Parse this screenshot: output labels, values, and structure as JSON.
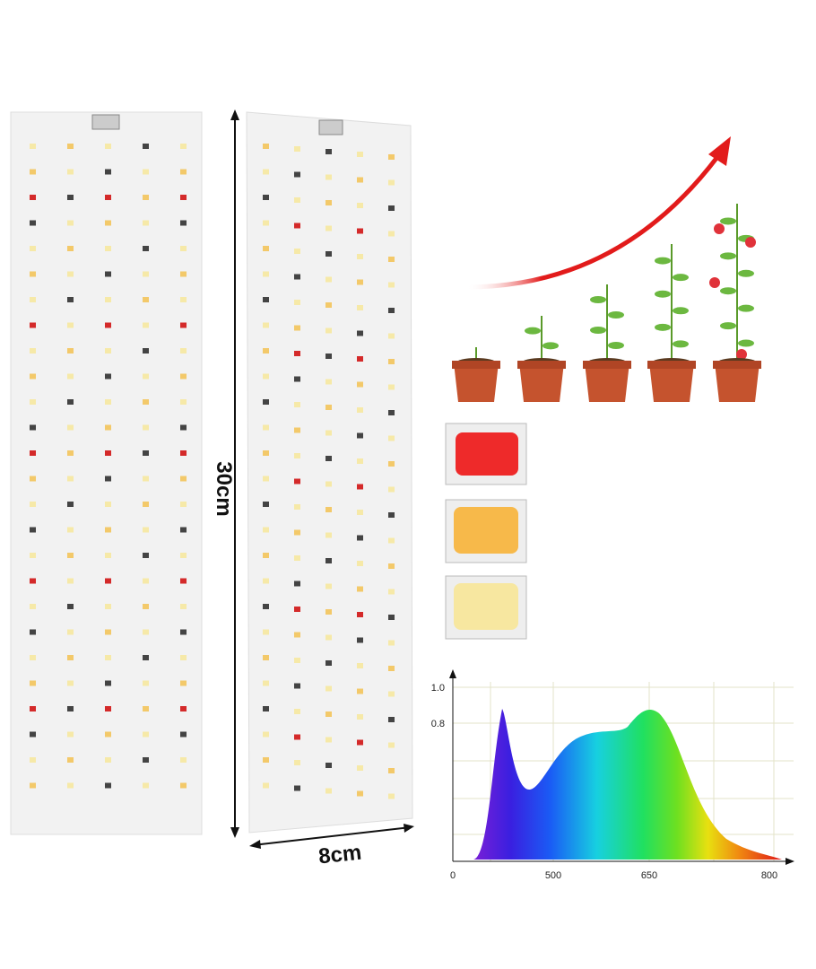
{
  "dimensions": {
    "height": "30cm",
    "width": "8cm"
  },
  "spectrum": {
    "x_labels": [
      "0",
      "500",
      "650",
      "800"
    ],
    "y_labels": [
      "1.0",
      "0.8"
    ]
  }
}
